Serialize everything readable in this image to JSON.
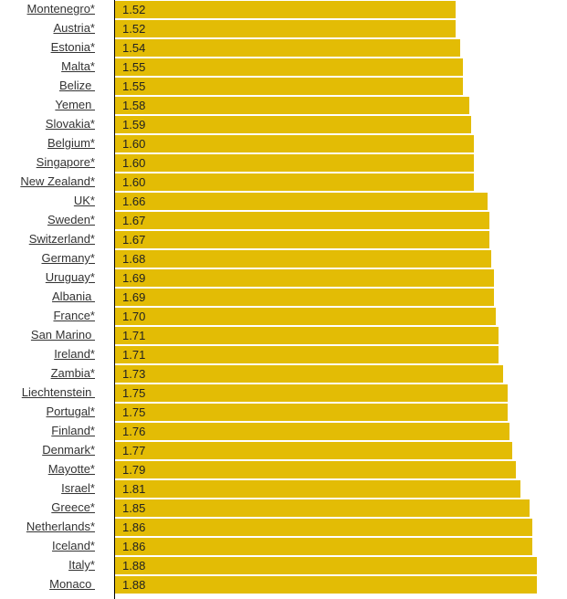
{
  "chart_data": {
    "type": "bar",
    "orientation": "horizontal",
    "bar_color": "#e3bc05",
    "categories": [
      "Montenegro*",
      "Austria*",
      "Estonia*",
      "Malta*",
      "Belize ",
      "Yemen ",
      "Slovakia*",
      "Belgium*",
      "Singapore*",
      "New Zealand*",
      "UK*",
      "Sweden*",
      "Switzerland*",
      "Germany*",
      "Uruguay*",
      "Albania ",
      "France*",
      "San Marino ",
      "Ireland*",
      "Zambia*",
      "Liechtenstein ",
      "Portugal*",
      "Finland*",
      "Denmark*",
      "Mayotte*",
      "Israel*",
      "Greece*",
      "Netherlands*",
      "Iceland*",
      "Italy*",
      "Monaco "
    ],
    "values": [
      1.52,
      1.52,
      1.54,
      1.55,
      1.55,
      1.58,
      1.59,
      1.6,
      1.6,
      1.6,
      1.66,
      1.67,
      1.67,
      1.68,
      1.69,
      1.69,
      1.7,
      1.71,
      1.71,
      1.73,
      1.75,
      1.75,
      1.76,
      1.77,
      1.79,
      1.81,
      1.85,
      1.86,
      1.86,
      1.88,
      1.88
    ],
    "xlim": [
      0,
      2.02
    ]
  }
}
